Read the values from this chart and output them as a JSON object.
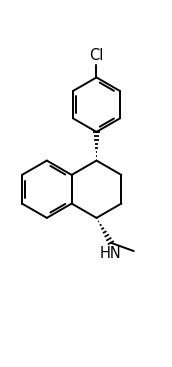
{
  "background_color": "#ffffff",
  "line_color": "#000000",
  "lw": 1.4,
  "cl_label": "Cl",
  "hn_label": "HN",
  "fontsize": 10.5,
  "figsize": [
    1.72,
    3.67
  ],
  "dpi": 100,
  "xlim": [
    -0.5,
    5.5
  ],
  "ylim": [
    -1.8,
    9.2
  ]
}
